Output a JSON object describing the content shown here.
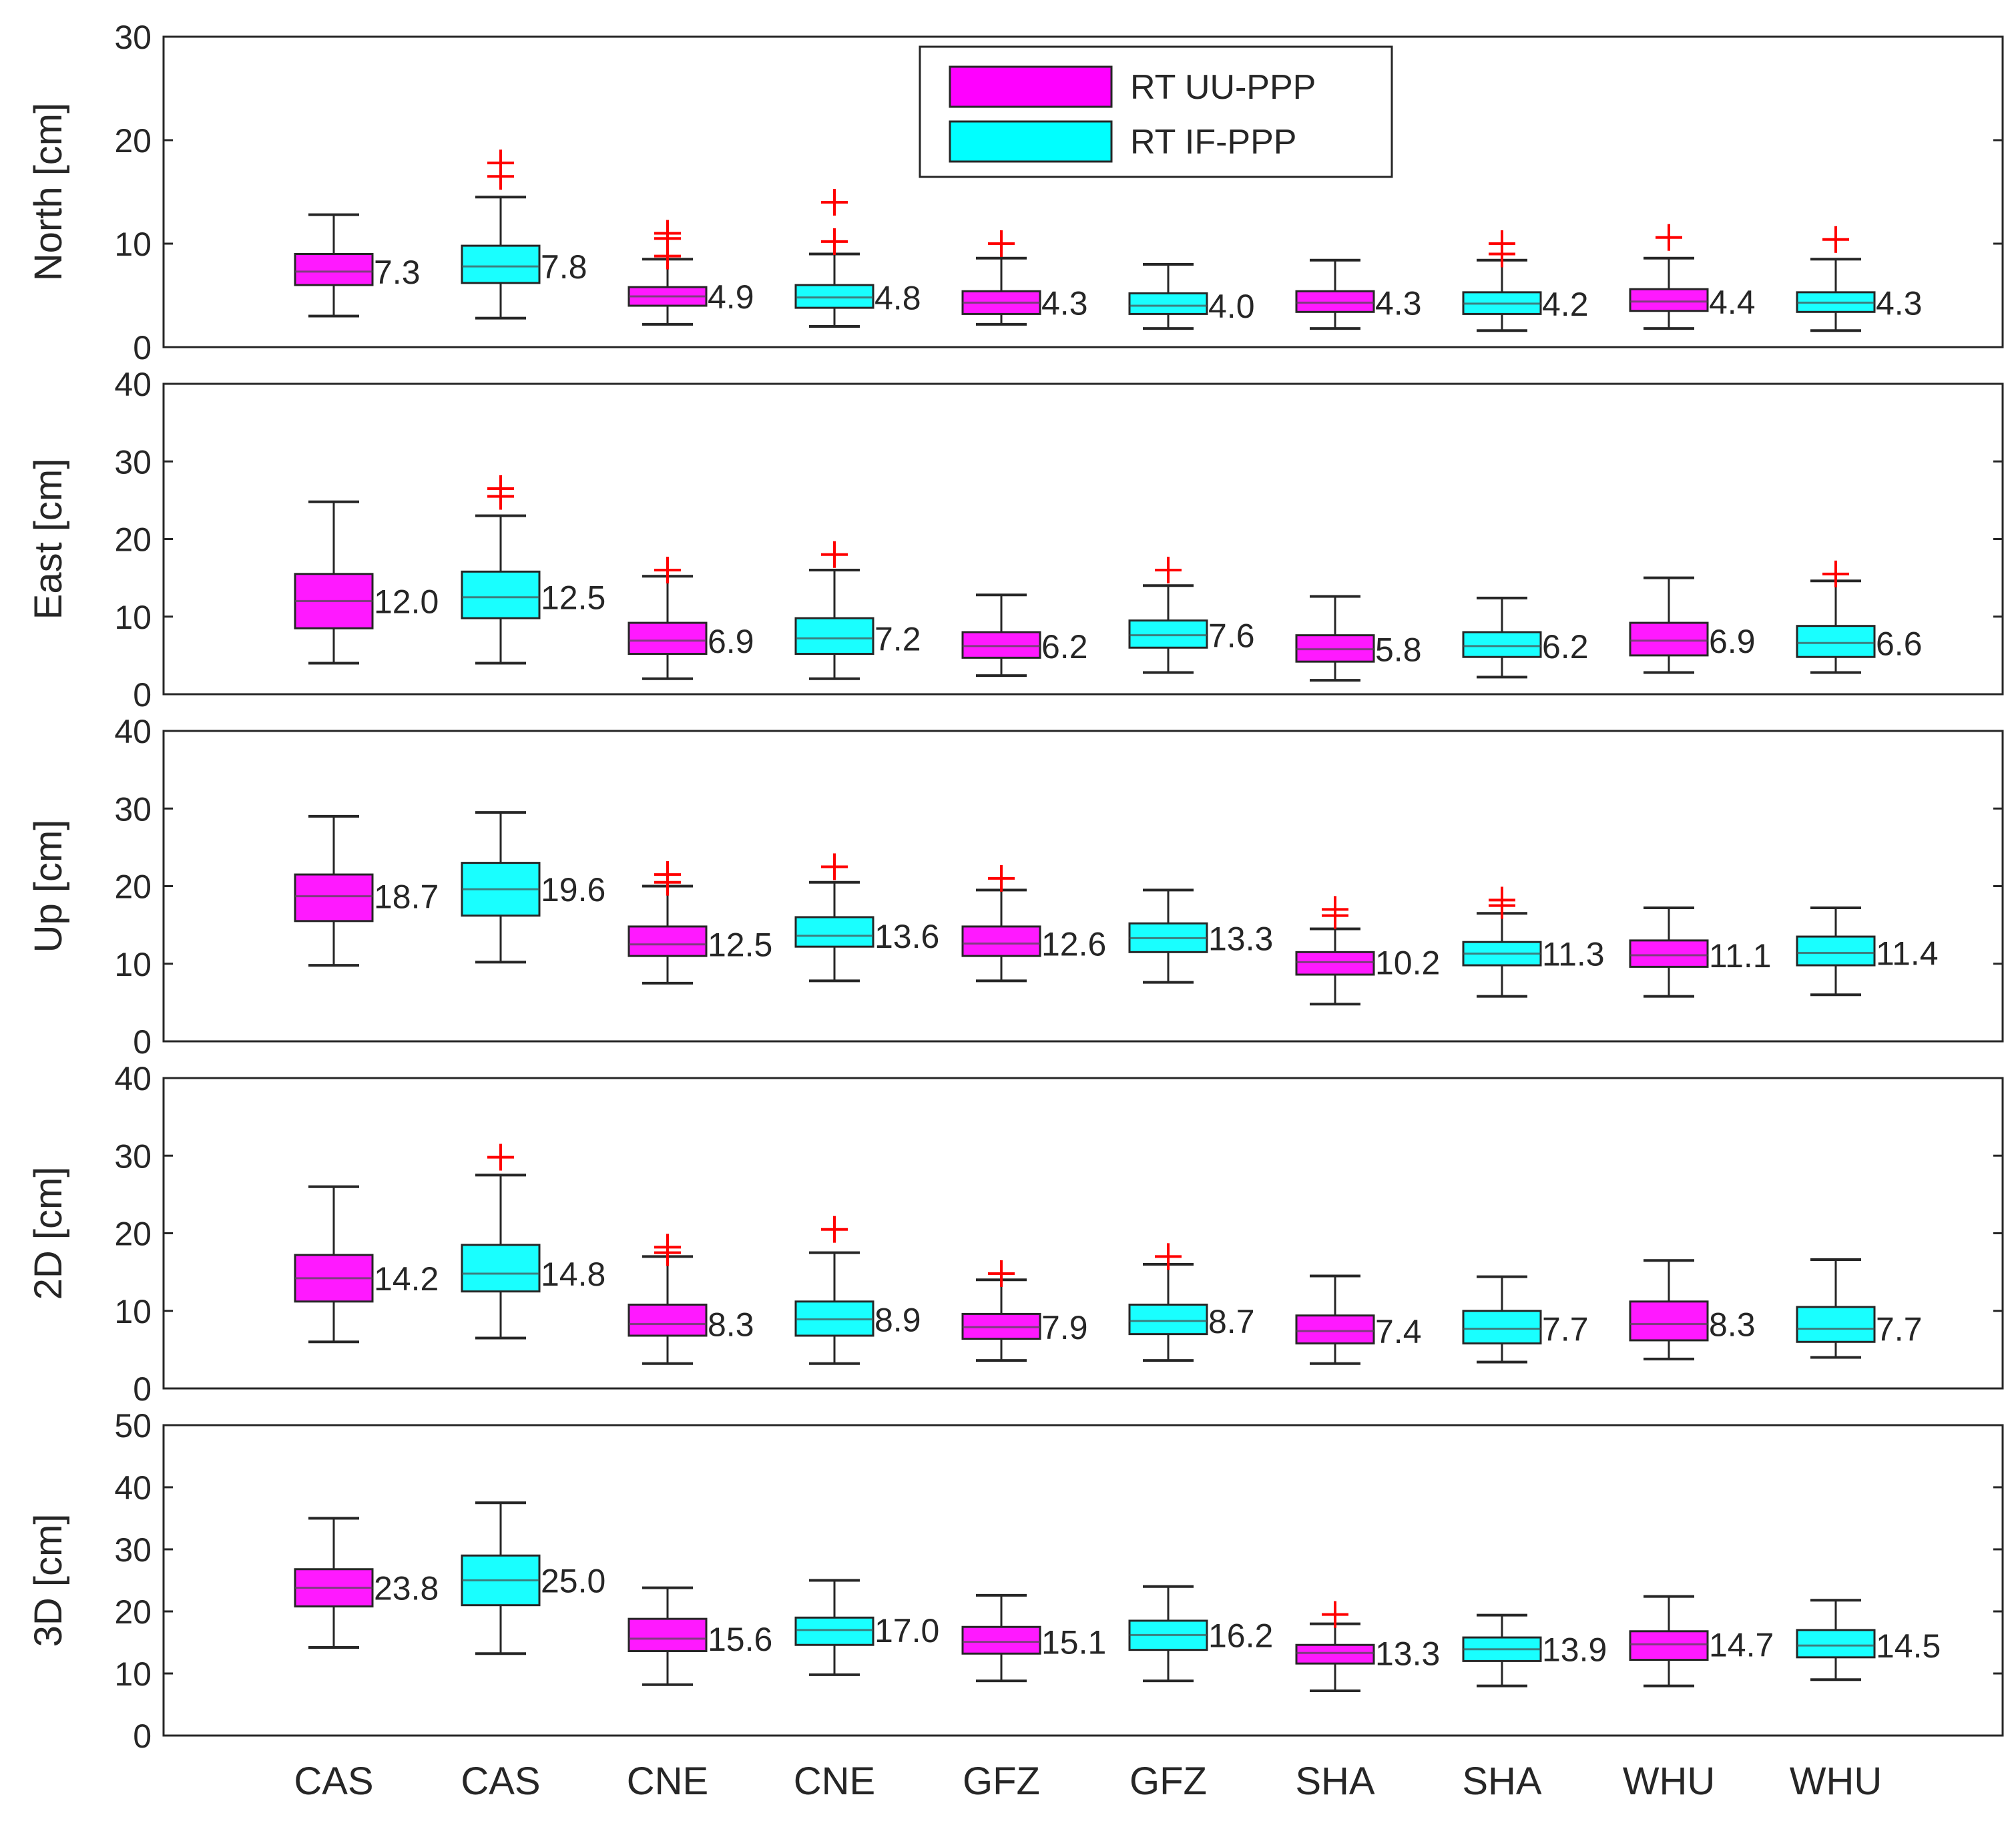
{
  "chart_data": {
    "type": "boxplot",
    "categories": [
      "CAS",
      "CAS",
      "CNE",
      "CNE",
      "GFZ",
      "GFZ",
      "SHA",
      "SHA",
      "WHU",
      "WHU"
    ],
    "legend": {
      "placement": "top-center",
      "entries": [
        {
          "label": "RT UU-PPP",
          "color": "#ff00ff"
        },
        {
          "label": "RT IF-PPP",
          "color": "#00ffff"
        }
      ]
    },
    "series_colors": [
      "#ff00ff",
      "#00ffff",
      "#ff00ff",
      "#00ffff",
      "#ff00ff",
      "#00ffff",
      "#ff00ff",
      "#00ffff",
      "#ff00ff",
      "#00ffff"
    ],
    "panels": [
      {
        "ylabel": "North [cm]",
        "ylim": [
          0,
          30
        ],
        "yticks": [
          0,
          10,
          20,
          30
        ],
        "boxes": [
          {
            "label": "7.3",
            "wlo": 3,
            "q1": 6,
            "med": 7.3,
            "q3": 9,
            "whi": 12.8,
            "outliers": []
          },
          {
            "label": "7.8",
            "wlo": 2.8,
            "q1": 6.2,
            "med": 7.8,
            "q3": 9.8,
            "whi": 14.5,
            "outliers": [
              16.5,
              17.8
            ]
          },
          {
            "label": "4.9",
            "wlo": 2.2,
            "q1": 4,
            "med": 4.9,
            "q3": 5.8,
            "whi": 8.5,
            "outliers": [
              8.8,
              10.5,
              11
            ]
          },
          {
            "label": "4.8",
            "wlo": 2,
            "q1": 3.8,
            "med": 4.8,
            "q3": 6,
            "whi": 9,
            "outliers": [
              10.2,
              14
            ]
          },
          {
            "label": "4.3",
            "wlo": 2.2,
            "q1": 3.2,
            "med": 4.3,
            "q3": 5.4,
            "whi": 8.6,
            "outliers": [
              10
            ]
          },
          {
            "label": "4.0",
            "wlo": 1.8,
            "q1": 3.2,
            "med": 4,
            "q3": 5.2,
            "whi": 8,
            "outliers": []
          },
          {
            "label": "4.3",
            "wlo": 1.8,
            "q1": 3.4,
            "med": 4.3,
            "q3": 5.4,
            "whi": 8.4,
            "outliers": []
          },
          {
            "label": "4.2",
            "wlo": 1.6,
            "q1": 3.2,
            "med": 4.2,
            "q3": 5.3,
            "whi": 8.4,
            "outliers": [
              9,
              10
            ]
          },
          {
            "label": "4.4",
            "wlo": 1.8,
            "q1": 3.5,
            "med": 4.4,
            "q3": 5.6,
            "whi": 8.6,
            "outliers": [
              10.6
            ]
          },
          {
            "label": "4.3",
            "wlo": 1.6,
            "q1": 3.4,
            "med": 4.3,
            "q3": 5.3,
            "whi": 8.5,
            "outliers": [
              10.4
            ]
          }
        ]
      },
      {
        "ylabel": "East [cm]",
        "ylim": [
          0,
          40
        ],
        "yticks": [
          0,
          10,
          20,
          30,
          40
        ],
        "boxes": [
          {
            "label": "12.0",
            "wlo": 4,
            "q1": 8.5,
            "med": 12,
            "q3": 15.5,
            "whi": 24.8,
            "outliers": []
          },
          {
            "label": "12.5",
            "wlo": 4,
            "q1": 9.8,
            "med": 12.5,
            "q3": 15.8,
            "whi": 23,
            "outliers": [
              25.5,
              26.5
            ]
          },
          {
            "label": "6.9",
            "wlo": 2,
            "q1": 5.2,
            "med": 6.9,
            "q3": 9.2,
            "whi": 15.2,
            "outliers": [
              16
            ]
          },
          {
            "label": "7.2",
            "wlo": 2,
            "q1": 5.2,
            "med": 7.2,
            "q3": 9.8,
            "whi": 16,
            "outliers": [
              18
            ]
          },
          {
            "label": "6.2",
            "wlo": 2.4,
            "q1": 4.7,
            "med": 6.2,
            "q3": 8,
            "whi": 12.8,
            "outliers": []
          },
          {
            "label": "7.6",
            "wlo": 2.8,
            "q1": 6,
            "med": 7.6,
            "q3": 9.5,
            "whi": 14,
            "outliers": [
              16
            ]
          },
          {
            "label": "5.8",
            "wlo": 1.8,
            "q1": 4.2,
            "med": 5.8,
            "q3": 7.6,
            "whi": 12.6,
            "outliers": []
          },
          {
            "label": "6.2",
            "wlo": 2.2,
            "q1": 4.8,
            "med": 6.2,
            "q3": 8,
            "whi": 12.4,
            "outliers": []
          },
          {
            "label": "6.9",
            "wlo": 2.8,
            "q1": 5,
            "med": 6.9,
            "q3": 9.2,
            "whi": 15,
            "outliers": []
          },
          {
            "label": "6.6",
            "wlo": 2.8,
            "q1": 4.8,
            "med": 6.6,
            "q3": 8.8,
            "whi": 14.6,
            "outliers": [
              15.5
            ]
          }
        ]
      },
      {
        "ylabel": "Up [cm]",
        "ylim": [
          0,
          40
        ],
        "yticks": [
          0,
          10,
          20,
          30,
          40
        ],
        "boxes": [
          {
            "label": "18.7",
            "wlo": 9.8,
            "q1": 15.5,
            "med": 18.7,
            "q3": 21.5,
            "whi": 29,
            "outliers": []
          },
          {
            "label": "19.6",
            "wlo": 10.2,
            "q1": 16.2,
            "med": 19.6,
            "q3": 23,
            "whi": 29.5,
            "outliers": []
          },
          {
            "label": "12.5",
            "wlo": 7.5,
            "q1": 11,
            "med": 12.5,
            "q3": 14.8,
            "whi": 20,
            "outliers": [
              20.5,
              21.5
            ]
          },
          {
            "label": "13.6",
            "wlo": 7.8,
            "q1": 12.2,
            "med": 13.6,
            "q3": 16,
            "whi": 20.5,
            "outliers": [
              22.5
            ]
          },
          {
            "label": "12.6",
            "wlo": 7.8,
            "q1": 11,
            "med": 12.6,
            "q3": 14.8,
            "whi": 19.5,
            "outliers": [
              21
            ]
          },
          {
            "label": "13.3",
            "wlo": 7.6,
            "q1": 11.5,
            "med": 13.3,
            "q3": 15.2,
            "whi": 19.5,
            "outliers": []
          },
          {
            "label": "10.2",
            "wlo": 4.8,
            "q1": 8.6,
            "med": 10.2,
            "q3": 11.5,
            "whi": 14.5,
            "outliers": [
              16.2,
              17
            ]
          },
          {
            "label": "11.3",
            "wlo": 5.8,
            "q1": 9.8,
            "med": 11.3,
            "q3": 12.8,
            "whi": 16.5,
            "outliers": [
              17.5,
              18.2
            ]
          },
          {
            "label": "11.1",
            "wlo": 5.8,
            "q1": 9.6,
            "med": 11.1,
            "q3": 13,
            "whi": 17.2,
            "outliers": []
          },
          {
            "label": "11.4",
            "wlo": 6,
            "q1": 9.8,
            "med": 11.4,
            "q3": 13.5,
            "whi": 17.2,
            "outliers": []
          }
        ]
      },
      {
        "ylabel": "2D [cm]",
        "ylim": [
          0,
          40
        ],
        "yticks": [
          0,
          10,
          20,
          30,
          40
        ],
        "boxes": [
          {
            "label": "14.2",
            "wlo": 6,
            "q1": 11.2,
            "med": 14.2,
            "q3": 17.2,
            "whi": 26,
            "outliers": []
          },
          {
            "label": "14.8",
            "wlo": 6.5,
            "q1": 12.5,
            "med": 14.8,
            "q3": 18.5,
            "whi": 27.5,
            "outliers": [
              29.8
            ]
          },
          {
            "label": "8.3",
            "wlo": 3.2,
            "q1": 6.8,
            "med": 8.3,
            "q3": 10.8,
            "whi": 17,
            "outliers": [
              17.5,
              18.2
            ]
          },
          {
            "label": "8.9",
            "wlo": 3.2,
            "q1": 6.8,
            "med": 8.9,
            "q3": 11.2,
            "whi": 17.5,
            "outliers": [
              20.5
            ]
          },
          {
            "label": "7.9",
            "wlo": 3.6,
            "q1": 6.4,
            "med": 7.9,
            "q3": 9.6,
            "whi": 14,
            "outliers": [
              14.8
            ]
          },
          {
            "label": "8.7",
            "wlo": 3.6,
            "q1": 7,
            "med": 8.7,
            "q3": 10.8,
            "whi": 16,
            "outliers": [
              17
            ]
          },
          {
            "label": "7.4",
            "wlo": 3.2,
            "q1": 5.8,
            "med": 7.4,
            "q3": 9.4,
            "whi": 14.5,
            "outliers": []
          },
          {
            "label": "7.7",
            "wlo": 3.4,
            "q1": 5.8,
            "med": 7.7,
            "q3": 10,
            "whi": 14.4,
            "outliers": []
          },
          {
            "label": "8.3",
            "wlo": 3.8,
            "q1": 6.2,
            "med": 8.3,
            "q3": 11.2,
            "whi": 16.5,
            "outliers": []
          },
          {
            "label": "7.7",
            "wlo": 4,
            "q1": 6,
            "med": 7.7,
            "q3": 10.5,
            "whi": 16.6,
            "outliers": []
          }
        ]
      },
      {
        "ylabel": "3D [cm]",
        "ylim": [
          0,
          50
        ],
        "yticks": [
          0,
          10,
          20,
          30,
          40,
          50
        ],
        "boxes": [
          {
            "label": "23.8",
            "wlo": 14.2,
            "q1": 20.8,
            "med": 23.8,
            "q3": 26.8,
            "whi": 35,
            "outliers": []
          },
          {
            "label": "25.0",
            "wlo": 13.2,
            "q1": 21,
            "med": 25,
            "q3": 29,
            "whi": 37.5,
            "outliers": []
          },
          {
            "label": "15.6",
            "wlo": 8.2,
            "q1": 13.6,
            "med": 15.6,
            "q3": 18.8,
            "whi": 23.8,
            "outliers": []
          },
          {
            "label": "17.0",
            "wlo": 9.8,
            "q1": 14.6,
            "med": 17,
            "q3": 19,
            "whi": 25,
            "outliers": []
          },
          {
            "label": "15.1",
            "wlo": 8.8,
            "q1": 13.2,
            "med": 15.1,
            "q3": 17.5,
            "whi": 22.6,
            "outliers": []
          },
          {
            "label": "16.2",
            "wlo": 8.8,
            "q1": 13.8,
            "med": 16.2,
            "q3": 18.5,
            "whi": 24,
            "outliers": []
          },
          {
            "label": "13.3",
            "wlo": 7.2,
            "q1": 11.6,
            "med": 13.3,
            "q3": 14.6,
            "whi": 18,
            "outliers": [
              19.5
            ]
          },
          {
            "label": "13.9",
            "wlo": 8,
            "q1": 12,
            "med": 13.9,
            "q3": 15.8,
            "whi": 19.4,
            "outliers": []
          },
          {
            "label": "14.7",
            "wlo": 8,
            "q1": 12.2,
            "med": 14.7,
            "q3": 16.8,
            "whi": 22.4,
            "outliers": []
          },
          {
            "label": "14.5",
            "wlo": 9,
            "q1": 12.6,
            "med": 14.5,
            "q3": 17,
            "whi": 21.8,
            "outliers": []
          }
        ]
      }
    ]
  }
}
